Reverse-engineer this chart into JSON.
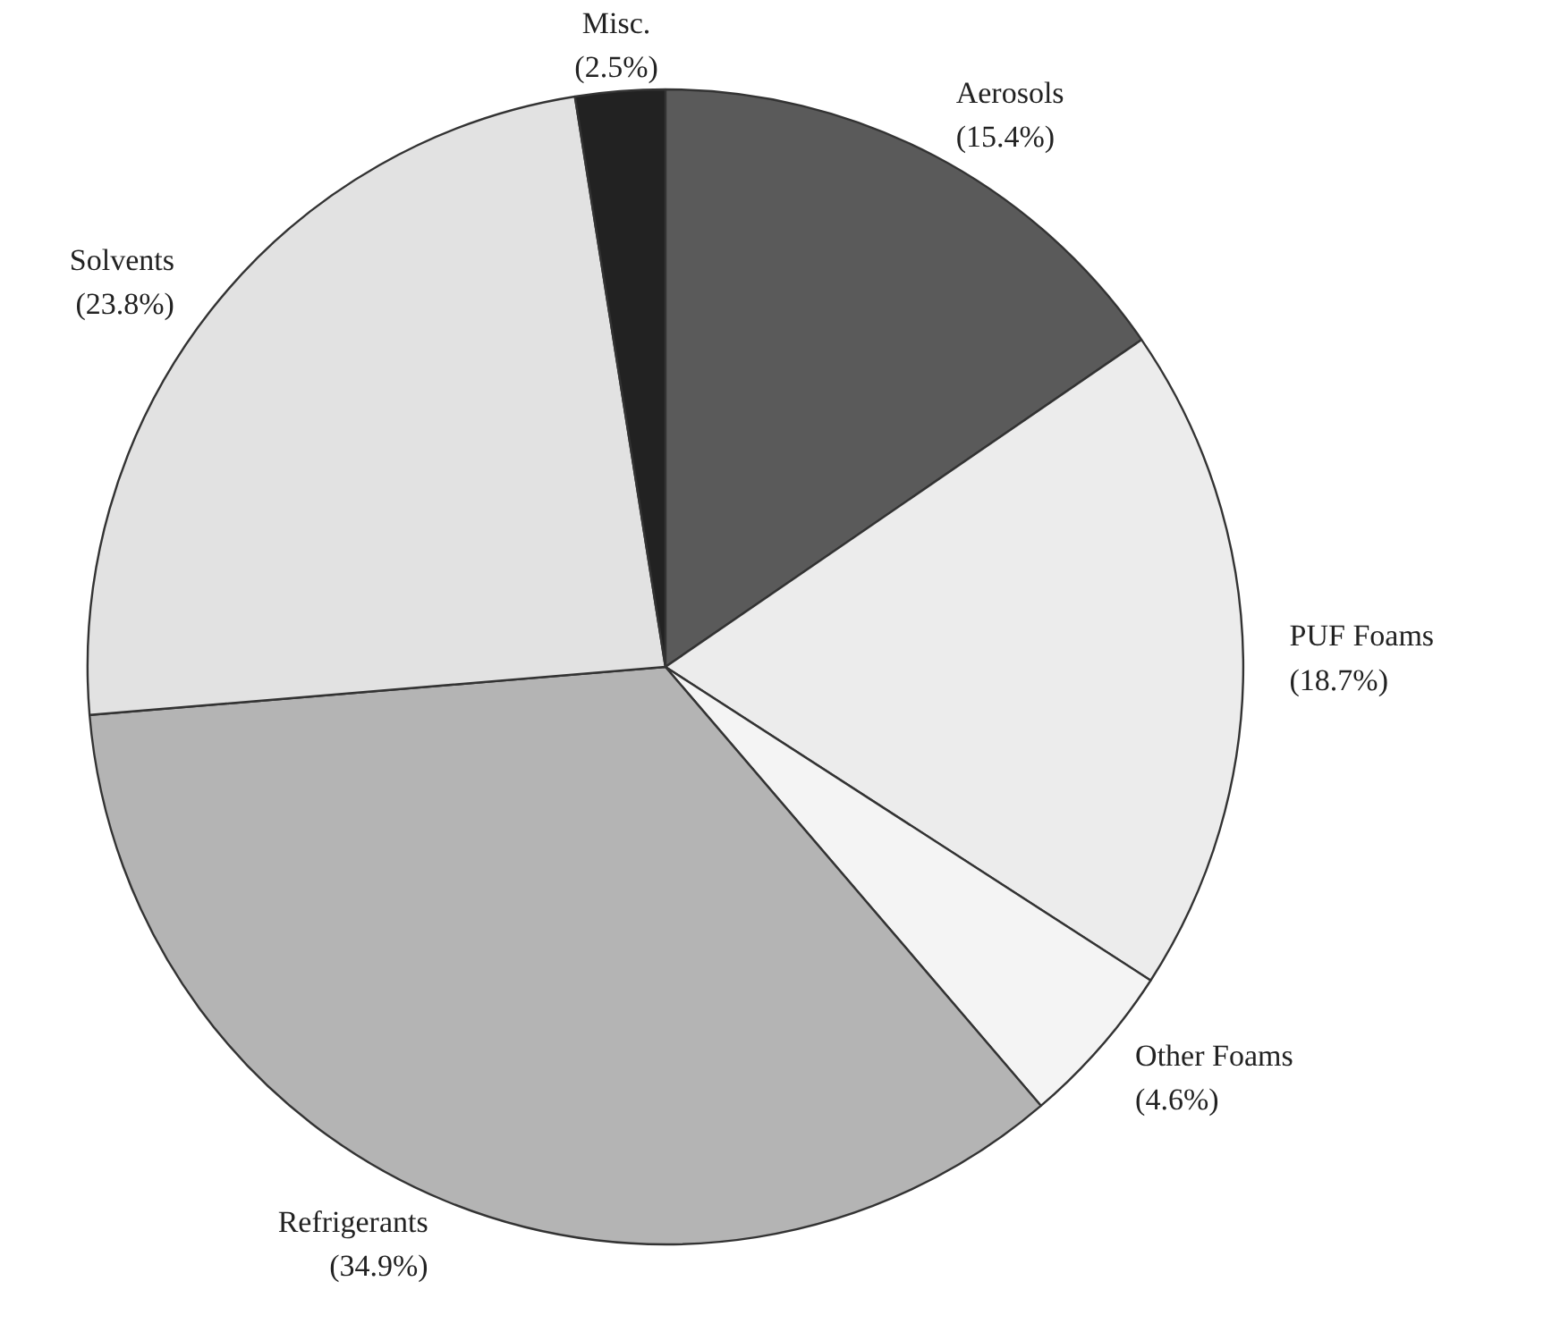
{
  "chart_data": {
    "type": "pie",
    "categories": [
      "Aerosols",
      "PUF Foams",
      "Other Foams",
      "Refrigerants",
      "Solvents",
      "Misc."
    ],
    "values": [
      15.4,
      18.7,
      4.6,
      34.9,
      23.8,
      2.5
    ],
    "value_labels": [
      "(15.4%)",
      "(18.7%)",
      "(4.6%)",
      "(34.9%)",
      "(23.8%)",
      "(2.5%)"
    ],
    "colors": [
      "#5a5a5a",
      "#ececec",
      "#f4f4f4",
      "#b4b4b4",
      "#e2e2e2",
      "#222222"
    ]
  }
}
